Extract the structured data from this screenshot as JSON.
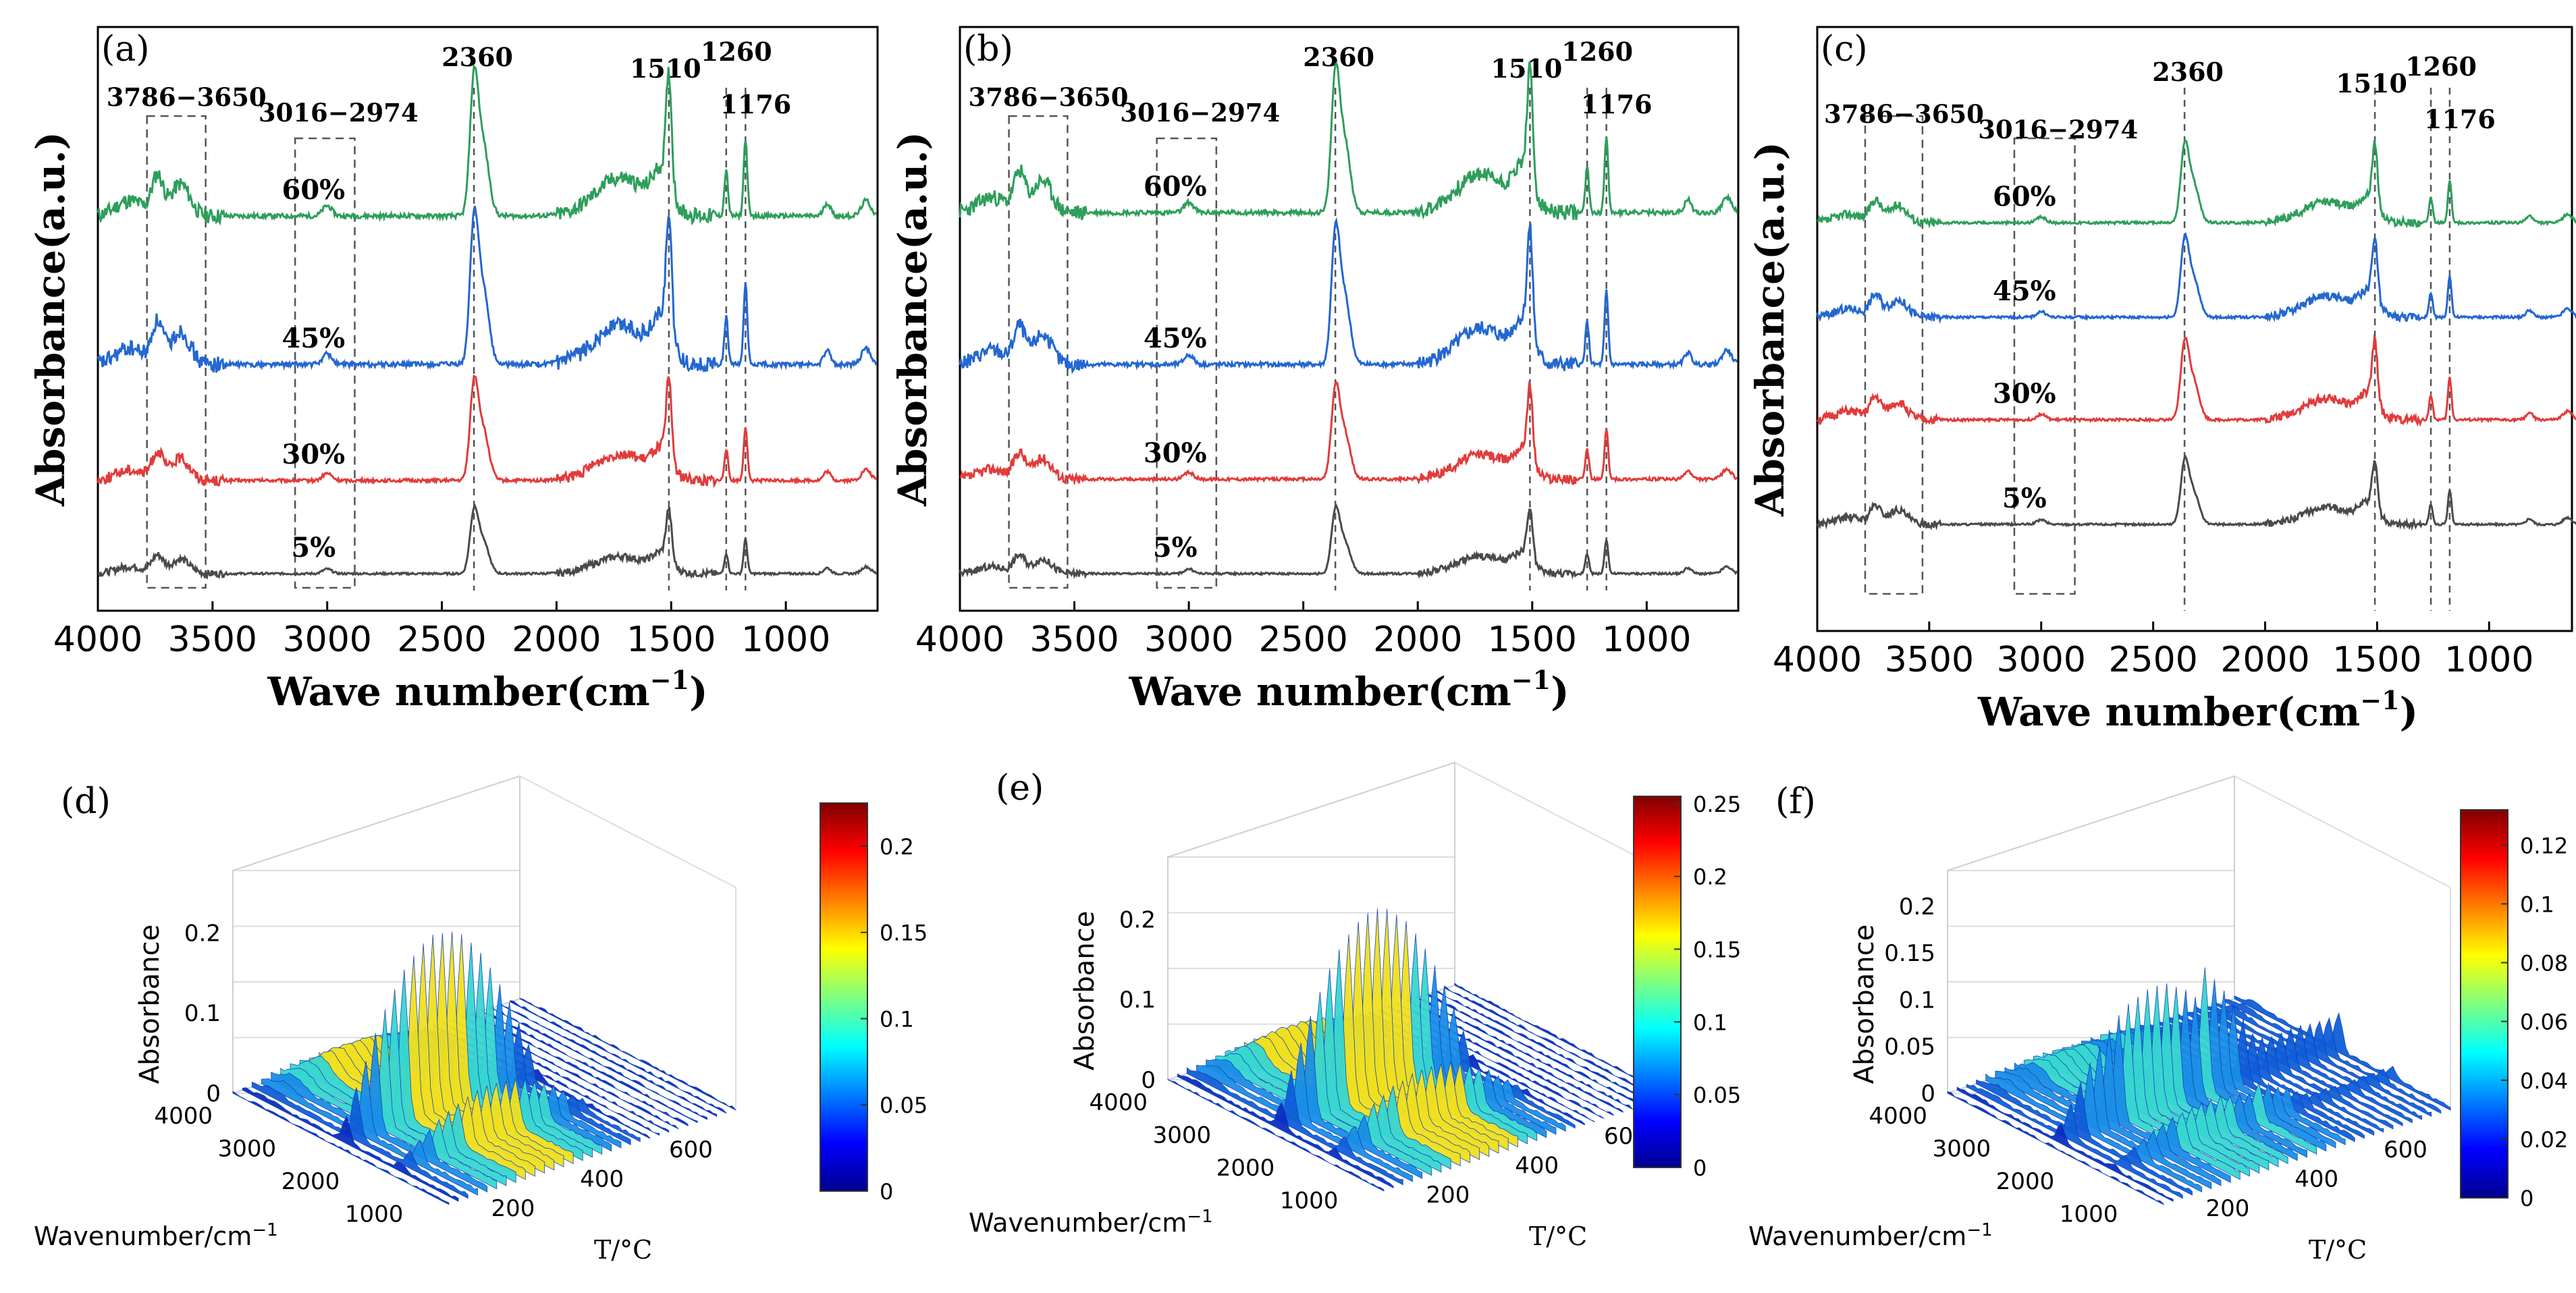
{
  "chart_data": [
    {
      "panel": "(a)",
      "type": "line",
      "xlabel": "Wave number(cm",
      "xlabel_sup": "−1",
      "xlabel_close": ")",
      "ylabel": "Absorbance(a.u.)",
      "xlim": [
        4000,
        600
      ],
      "xticks": [
        4000,
        3500,
        3000,
        2500,
        2000,
        1500,
        1000
      ],
      "xtick_labels": [
        "4000",
        "3500",
        "3000",
        "2500",
        "2000",
        "1500",
        "1000"
      ],
      "peak_labels": [
        "2360",
        "1510",
        "1260",
        "1176"
      ],
      "peak_positions": [
        2360,
        1510,
        1260,
        1176
      ],
      "box_labels": [
        "3786−3650",
        "3016−2974"
      ],
      "boxes": [
        [
          3786,
          3530
        ],
        [
          3140,
          2880
        ]
      ],
      "series": [
        {
          "name": "60%",
          "color": "#2e9e5b",
          "baseline": 3,
          "scale": 1.0
        },
        {
          "name": "45%",
          "color": "#2367d1",
          "baseline": 2,
          "scale": 1.05
        },
        {
          "name": "30%",
          "color": "#e23b3b",
          "baseline": 1,
          "scale": 0.7
        },
        {
          "name": "5%",
          "color": "#4a4a4a",
          "baseline": 0,
          "scale": 0.45
        }
      ]
    },
    {
      "panel": "(b)",
      "type": "line",
      "xlabel": "Wave number(cm",
      "xlabel_sup": "−1",
      "xlabel_close": ")",
      "ylabel": "Absorbance(a.u.)",
      "xlim": [
        4000,
        600
      ],
      "xticks": [
        4000,
        3500,
        3000,
        2500,
        2000,
        1500,
        1000
      ],
      "xtick_labels": [
        "4000",
        "3500",
        "3000",
        "2500",
        "2000",
        "1500",
        "1000"
      ],
      "peak_labels": [
        "2360",
        "1510",
        "1260",
        "1176"
      ],
      "peak_positions": [
        2360,
        1510,
        1260,
        1176
      ],
      "box_labels": [
        "3786−3650",
        "3016−2974"
      ],
      "boxes": [
        [
          3786,
          3530
        ],
        [
          3140,
          2880
        ]
      ],
      "series": [
        {
          "name": "60%",
          "color": "#2e9e5b",
          "baseline": 3,
          "scale": 1.0
        },
        {
          "name": "45%",
          "color": "#2367d1",
          "baseline": 2,
          "scale": 0.95
        },
        {
          "name": "30%",
          "color": "#e23b3b",
          "baseline": 1,
          "scale": 0.65
        },
        {
          "name": "5%",
          "color": "#4a4a4a",
          "baseline": 0,
          "scale": 0.45
        }
      ]
    },
    {
      "panel": "(c)",
      "type": "line",
      "xlabel": "Wave number(cm",
      "xlabel_sup": "−1",
      "xlabel_close": ")",
      "ylabel": "Absorbance(a.u.)",
      "xlim": [
        4000,
        600
      ],
      "xticks": [
        4000,
        3500,
        3000,
        2500,
        2000,
        1500,
        1000
      ],
      "xtick_labels": [
        "4000",
        "3500",
        "3000",
        "2500",
        "2000",
        "1500",
        "1000"
      ],
      "peak_labels": [
        "2360",
        "1510",
        "1260",
        "1176"
      ],
      "peak_positions": [
        2360,
        1510,
        1260,
        1176
      ],
      "box_labels": [
        "3786−3650",
        "3016−2974"
      ],
      "boxes": [
        [
          3786,
          3530
        ],
        [
          3120,
          2850
        ]
      ],
      "series": [
        {
          "name": "60%",
          "color": "#2e9e5b",
          "baseline": 3,
          "scale": 0.55
        },
        {
          "name": "45%",
          "color": "#2367d1",
          "baseline": 2,
          "scale": 0.55
        },
        {
          "name": "30%",
          "color": "#e23b3b",
          "baseline": 1,
          "scale": 0.55
        },
        {
          "name": "5%",
          "color": "#4a4a4a",
          "baseline": 0,
          "scale": 0.45
        }
      ]
    },
    {
      "panel": "(d)",
      "type": "surface3d",
      "zlabel": "Absorbance",
      "xlabel": "Wavenumber/cm",
      "xlabel_sup": "−1",
      "ylabel": "T/°C",
      "zticks": [
        "0.2",
        "0.1",
        "0"
      ],
      "wave_ticks": [
        "4000",
        "3000",
        "2000",
        "1000"
      ],
      "temp_ticks": [
        "200",
        "400",
        "600"
      ],
      "colorbar_max": 0.22,
      "colorbar_ticks": [
        "0.2",
        "0.15",
        "0.1",
        "0.05",
        "0"
      ]
    },
    {
      "panel": "(e)",
      "type": "surface3d",
      "zlabel": "Absorbance",
      "xlabel": "Wavenumber/cm",
      "xlabel_sup": "−1",
      "ylabel": "T/°C",
      "zticks": [
        "0.2",
        "0.1",
        "0"
      ],
      "wave_ticks": [
        "4000",
        "3000",
        "2000",
        "1000"
      ],
      "temp_ticks": [
        "200",
        "400",
        "600"
      ],
      "colorbar_max": 0.25,
      "colorbar_ticks": [
        "0.25",
        "0.2",
        "0.15",
        "0.1",
        "0.05",
        "0"
      ]
    },
    {
      "panel": "(f)",
      "type": "surface3d",
      "zlabel": "Absorbance",
      "xlabel": "Wavenumber/cm",
      "xlabel_sup": "−1",
      "ylabel": "T/°C",
      "zticks": [
        "0.2",
        "0.15",
        "0.1",
        "0.05",
        "0"
      ],
      "wave_ticks": [
        "4000",
        "3000",
        "2000",
        "1000"
      ],
      "temp_ticks": [
        "200",
        "400",
        "600"
      ],
      "colorbar_max": 0.13,
      "colorbar_ticks": [
        "0.12",
        "0.1",
        "0.08",
        "0.06",
        "0.04",
        "0.02",
        "0"
      ]
    }
  ]
}
